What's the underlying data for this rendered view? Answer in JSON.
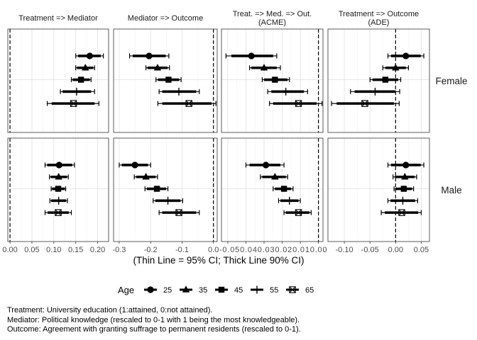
{
  "chart_data": {
    "type": "scatter",
    "xlabel": "(Thin Line = 95% CI; Thick Line 90% CI)",
    "legend": {
      "title": "Age",
      "placement": "bottom",
      "entries": [
        {
          "label": "25",
          "shape": "circle"
        },
        {
          "label": "35",
          "shape": "triangle"
        },
        {
          "label": "45",
          "shape": "square"
        },
        {
          "label": "55",
          "shape": "plus"
        },
        {
          "label": "65",
          "shape": "square-cross"
        }
      ]
    },
    "rows": [
      "Female",
      "Male"
    ],
    "panels": [
      {
        "title": [
          "Treatment => Mediator"
        ],
        "xlim": [
          -0.005,
          0.225
        ],
        "ticks": [
          0.0,
          0.05,
          0.1,
          0.15,
          0.2
        ],
        "tick_labels": [
          "0.00",
          "0.05",
          "0.10",
          "0.15",
          "0.20"
        ],
        "refline": 0,
        "data": {
          "Female": [
            {
              "age": "25",
              "est": 0.182,
              "lo95": 0.15,
              "hi95": 0.213,
              "lo90": 0.155,
              "hi90": 0.207
            },
            {
              "age": "35",
              "est": 0.172,
              "lo95": 0.15,
              "hi95": 0.193,
              "lo90": 0.153,
              "hi90": 0.19
            },
            {
              "age": "45",
              "est": 0.162,
              "lo95": 0.14,
              "hi95": 0.185,
              "lo90": 0.143,
              "hi90": 0.182
            },
            {
              "age": "55",
              "est": 0.152,
              "lo95": 0.115,
              "hi95": 0.193,
              "lo90": 0.12,
              "hi90": 0.185
            },
            {
              "age": "65",
              "est": 0.145,
              "lo95": 0.085,
              "hi95": 0.203,
              "lo90": 0.095,
              "hi90": 0.193
            }
          ],
          "Male": [
            {
              "age": "25",
              "est": 0.112,
              "lo95": 0.08,
              "hi95": 0.147,
              "lo90": 0.085,
              "hi90": 0.142
            },
            {
              "age": "35",
              "est": 0.111,
              "lo95": 0.09,
              "hi95": 0.133,
              "lo90": 0.093,
              "hi90": 0.13
            },
            {
              "age": "45",
              "est": 0.11,
              "lo95": 0.094,
              "hi95": 0.127,
              "lo90": 0.096,
              "hi90": 0.125
            },
            {
              "age": "55",
              "est": 0.111,
              "lo95": 0.091,
              "hi95": 0.131,
              "lo90": 0.094,
              "hi90": 0.128
            },
            {
              "age": "65",
              "est": 0.11,
              "lo95": 0.08,
              "hi95": 0.14,
              "lo90": 0.086,
              "hi90": 0.134
            }
          ]
        }
      },
      {
        "title": [
          "Mediator => Outcome"
        ],
        "xlim": [
          -0.318,
          0.012
        ],
        "ticks": [
          -0.3,
          -0.2,
          -0.1,
          0.0
        ],
        "tick_labels": [
          "-0.3",
          "-0.2",
          "-0.1",
          "0.0"
        ],
        "refline": 0,
        "data": {
          "Female": [
            {
              "age": "25",
              "est": -0.205,
              "lo95": -0.267,
              "hi95": -0.142,
              "lo90": -0.257,
              "hi90": -0.152
            },
            {
              "age": "35",
              "est": -0.178,
              "lo95": -0.215,
              "hi95": -0.14,
              "lo90": -0.21,
              "hi90": -0.146
            },
            {
              "age": "45",
              "est": -0.143,
              "lo95": -0.183,
              "hi95": -0.103,
              "lo90": -0.177,
              "hi90": -0.109
            },
            {
              "age": "55",
              "est": -0.11,
              "lo95": -0.173,
              "hi95": -0.045,
              "lo90": -0.163,
              "hi90": -0.055
            },
            {
              "age": "65",
              "est": -0.078,
              "lo95": -0.177,
              "hi95": 0.008,
              "lo90": -0.163,
              "hi90": -0.006
            }
          ],
          "Male": [
            {
              "age": "25",
              "est": -0.25,
              "lo95": -0.3,
              "hi95": -0.2,
              "lo90": -0.292,
              "hi90": -0.208
            },
            {
              "age": "35",
              "est": -0.215,
              "lo95": -0.252,
              "hi95": -0.178,
              "lo90": -0.246,
              "hi90": -0.184
            },
            {
              "age": "45",
              "est": -0.18,
              "lo95": -0.218,
              "hi95": -0.145,
              "lo90": -0.212,
              "hi90": -0.151
            },
            {
              "age": "55",
              "est": -0.145,
              "lo95": -0.192,
              "hi95": -0.098,
              "lo90": -0.185,
              "hi90": -0.105
            },
            {
              "age": "65",
              "est": -0.11,
              "lo95": -0.173,
              "hi95": -0.045,
              "lo90": -0.163,
              "hi90": -0.055
            }
          ]
        }
      },
      {
        "title": [
          "Treat. => Med. => Out.",
          "(ACME)"
        ],
        "xlim": [
          -0.0535,
          0.0025
        ],
        "ticks": [
          -0.05,
          -0.04,
          -0.03,
          -0.02,
          -0.01,
          0.0
        ],
        "tick_labels": [
          "-0.05",
          "-0.04",
          "-0.03",
          "-0.02",
          "-0.01",
          "0.00"
        ],
        "tick_text": "-0.050.040.030.020.010.00",
        "refline": 0,
        "data": {
          "Female": [
            {
              "age": "25",
              "est": -0.037,
              "lo95": -0.051,
              "hi95": -0.023,
              "lo90": -0.048,
              "hi90": -0.025
            },
            {
              "age": "35",
              "est": -0.03,
              "lo95": -0.038,
              "hi95": -0.021,
              "lo90": -0.037,
              "hi90": -0.023
            },
            {
              "age": "45",
              "est": -0.024,
              "lo95": -0.031,
              "hi95": -0.016,
              "lo90": -0.03,
              "hi90": -0.017
            },
            {
              "age": "55",
              "est": -0.018,
              "lo95": -0.028,
              "hi95": -0.006,
              "lo90": -0.026,
              "hi90": -0.008
            },
            {
              "age": "65",
              "est": -0.011,
              "lo95": -0.027,
              "hi95": 0.002,
              "lo90": -0.025,
              "hi90": -0.001
            }
          ],
          "Male": [
            {
              "age": "25",
              "est": -0.029,
              "lo95": -0.04,
              "hi95": -0.019,
              "lo90": -0.038,
              "hi90": -0.021
            },
            {
              "age": "35",
              "est": -0.024,
              "lo95": -0.032,
              "hi95": -0.017,
              "lo90": -0.031,
              "hi90": -0.018
            },
            {
              "age": "45",
              "est": -0.019,
              "lo95": -0.025,
              "hi95": -0.014,
              "lo90": -0.024,
              "hi90": -0.015
            },
            {
              "age": "55",
              "est": -0.016,
              "lo95": -0.022,
              "hi95": -0.01,
              "lo90": -0.021,
              "hi90": -0.011
            },
            {
              "age": "65",
              "est": -0.011,
              "lo95": -0.019,
              "hi95": -0.004,
              "lo90": -0.018,
              "hi90": -0.005
            }
          ]
        }
      },
      {
        "title": [
          "Treatment => Outcome",
          "(ADE)"
        ],
        "xlim": [
          -0.132,
          0.066
        ],
        "ticks": [
          -0.1,
          -0.05,
          0.0,
          0.05
        ],
        "tick_labels": [
          "-0.10",
          "-0.05",
          "0.00",
          "0.05"
        ],
        "refline": 0,
        "data": {
          "Female": [
            {
              "age": "25",
              "est": 0.02,
              "lo95": -0.015,
              "hi95": 0.055,
              "lo90": -0.009,
              "hi90": 0.049
            },
            {
              "age": "35",
              "est": 0.0,
              "lo95": -0.025,
              "hi95": 0.025,
              "lo90": -0.02,
              "hi90": 0.02
            },
            {
              "age": "45",
              "est": -0.02,
              "lo95": -0.05,
              "hi95": 0.01,
              "lo90": -0.045,
              "hi90": 0.005
            },
            {
              "age": "55",
              "est": -0.04,
              "lo95": -0.088,
              "hi95": 0.008,
              "lo90": -0.08,
              "hi90": 0.0
            },
            {
              "age": "65",
              "est": -0.06,
              "lo95": -0.125,
              "hi95": 0.007,
              "lo90": -0.115,
              "hi90": -0.003
            }
          ],
          "Male": [
            {
              "age": "25",
              "est": 0.02,
              "lo95": -0.015,
              "hi95": 0.055,
              "lo90": -0.009,
              "hi90": 0.049
            },
            {
              "age": "35",
              "est": 0.018,
              "lo95": -0.005,
              "hi95": 0.041,
              "lo90": -0.001,
              "hi90": 0.037
            },
            {
              "age": "45",
              "est": 0.016,
              "lo95": -0.003,
              "hi95": 0.035,
              "lo90": 0.0,
              "hi90": 0.032
            },
            {
              "age": "55",
              "est": 0.014,
              "lo95": -0.015,
              "hi95": 0.043,
              "lo90": -0.01,
              "hi90": 0.038
            },
            {
              "age": "65",
              "est": 0.012,
              "lo95": -0.028,
              "hi95": 0.05,
              "lo90": -0.021,
              "hi90": 0.044
            }
          ]
        }
      }
    ]
  },
  "notes": [
    "Treatment: University education (1:attained, 0:not attained).",
    "Mediator: Political knowledge (rescaled to 0-1 with 1 being the most knowledgeable).",
    "Outcome: Agreement with granting suffrage to permanent residents (rescaled to 0-1)."
  ]
}
